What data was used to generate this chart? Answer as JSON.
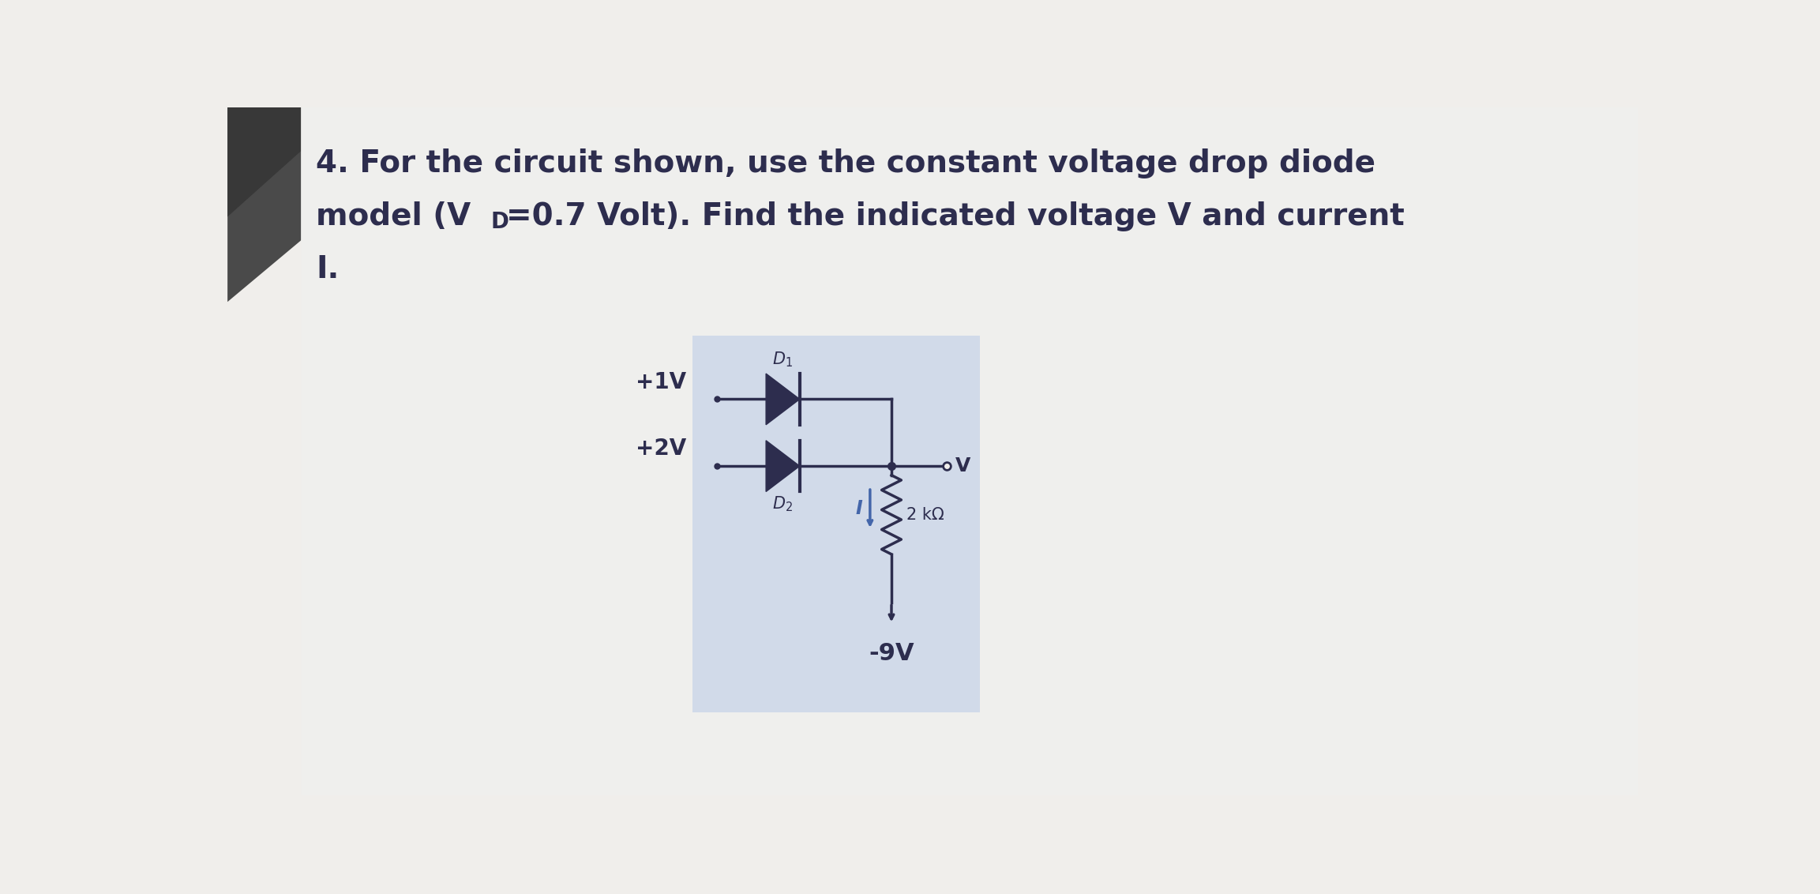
{
  "page_bg": "#f0eeeb",
  "dark_corner_color": "#555555",
  "circuit_bg": "#c8d4e8",
  "circ_col": "#2d2d4e",
  "blue_col": "#4466aa",
  "title_line1": "4. For the circuit shown, use the constant voltage drop diode",
  "title_line2a": "model (V",
  "title_line2b": "D",
  "title_line2c": "=0.7 Volt). Find the indicated voltage V and current",
  "title_line3": "I.",
  "label_1V": "+1V",
  "label_2V": "+2V",
  "label_R": "2 kΩ",
  "label_I": "I",
  "label_neg9V": "-9V",
  "label_V": "V",
  "title_fontsize": 28,
  "circuit_label_fontsize": 18,
  "sub_fontsize": 14
}
